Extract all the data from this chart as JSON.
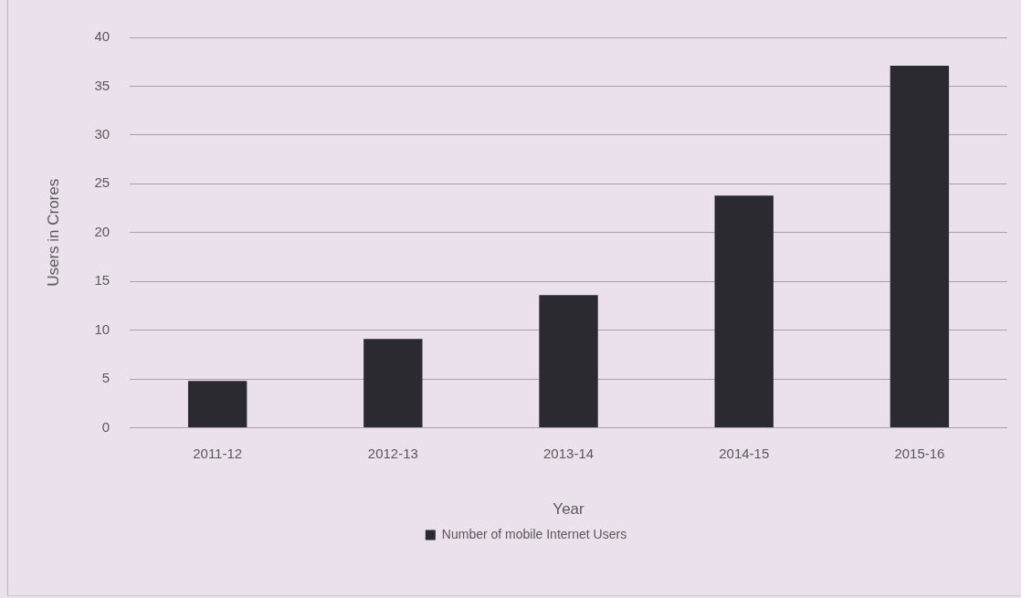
{
  "chart_data": {
    "type": "bar",
    "xlabel": "Year",
    "ylabel": "Users in Crores",
    "categories": [
      "2011-12",
      "2012-13",
      "2013-14",
      "2014-15",
      "2015-16"
    ],
    "series": [
      {
        "name": "Number of mobile Internet Users",
        "color": "#2b2a30",
        "values": [
          4.8,
          9.1,
          13.6,
          23.8,
          37.1
        ]
      }
    ],
    "ylim": [
      0,
      40
    ],
    "yticks": [
      0,
      5,
      10,
      15,
      20,
      25,
      30,
      35,
      40
    ],
    "grid": "y",
    "legend": "bottom"
  }
}
